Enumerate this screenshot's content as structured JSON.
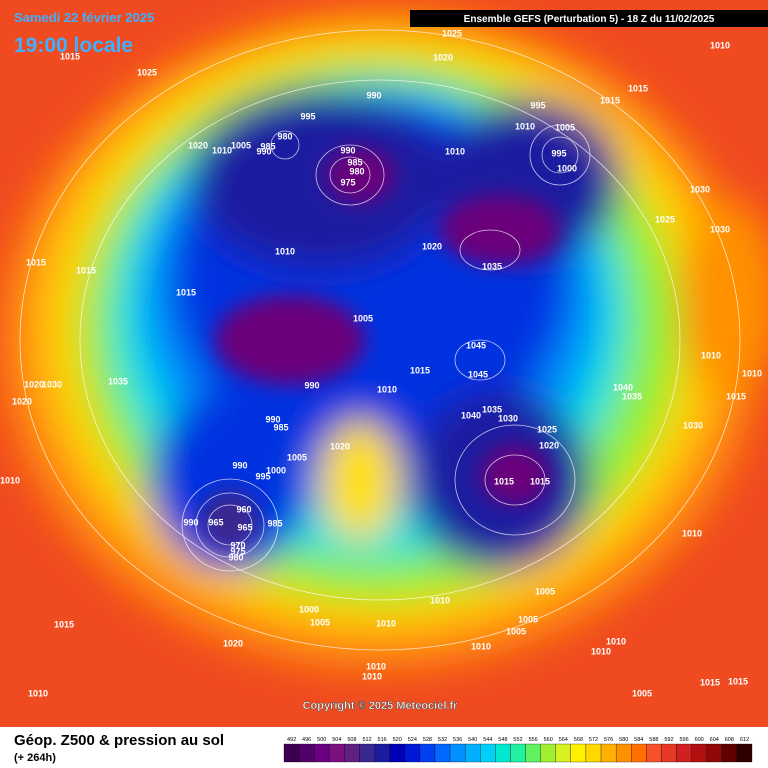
{
  "header": {
    "date": "Samedi 22 février 2025",
    "time": "19:00 locale",
    "run": "Ensemble GEFS  (Perturbation 5)  -  18 Z du 11/02/2025"
  },
  "map": {
    "isobar_labels": [
      "1025",
      "1015",
      "1025",
      "1020",
      "1010",
      "990",
      "995",
      "1015",
      "1015",
      "995",
      "1010",
      "1005",
      "980",
      "1020",
      "1010",
      "1005",
      "985",
      "990",
      "990",
      "985",
      "980",
      "975",
      "1010",
      "995",
      "1000",
      "1030",
      "1025",
      "1030",
      "1010",
      "1020",
      "1035",
      "1015",
      "1015",
      "1015",
      "1005",
      "1045",
      "1010",
      "1010",
      "1015",
      "1045",
      "1030",
      "1020",
      "1035",
      "990",
      "1010",
      "1040",
      "1035",
      "1015",
      "1020",
      "1035",
      "1040",
      "1030",
      "990",
      "985",
      "1025",
      "1030",
      "1020",
      "1020",
      "1005",
      "990",
      "1000",
      "995",
      "1015",
      "1010",
      "1015",
      "960",
      "990",
      "965",
      "965",
      "985",
      "970",
      "975",
      "980",
      "1010",
      "1005",
      "1010",
      "1000",
      "1005",
      "1010",
      "1005",
      "1005",
      "1010",
      "1015",
      "1020",
      "1010",
      "1010",
      "1010",
      "1010",
      "1015",
      "1015",
      "1010",
      "1005"
    ],
    "copyright": "Copyright © 2025 Meteociel.fr"
  },
  "footer": {
    "title": "Géop. Z500 & pression au sol",
    "lead_time": "(+ 264h)"
  },
  "legend": {
    "values": [
      492,
      496,
      500,
      504,
      508,
      512,
      516,
      520,
      524,
      528,
      532,
      536,
      540,
      544,
      548,
      552,
      556,
      560,
      564,
      568,
      572,
      576,
      580,
      584,
      588,
      592,
      596,
      600,
      604,
      608,
      612
    ],
    "colors": [
      "#3c0050",
      "#50006a",
      "#68007f",
      "#7d1080",
      "#602080",
      "#3a2890",
      "#1c1ca0",
      "#0000b4",
      "#0018d8",
      "#0040f0",
      "#0068ff",
      "#0090ff",
      "#00b0ff",
      "#00d0f8",
      "#00e8d0",
      "#20f0a0",
      "#60f060",
      "#a0f030",
      "#d8f020",
      "#fff000",
      "#ffd800",
      "#ffb000",
      "#ff9000",
      "#ff7000",
      "#f85028",
      "#e83828",
      "#d02020",
      "#b01010",
      "#900808",
      "#600000",
      "#300000"
    ]
  }
}
